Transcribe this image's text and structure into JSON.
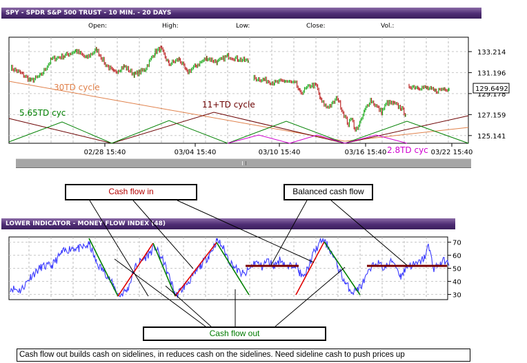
{
  "price_panel": {
    "title": "SPY - SPDR S&P 500 TRUST - 10 MIN. - 20 DAYS",
    "ohlc_labels": [
      "Open:",
      "High:",
      "Low:",
      "Close:",
      "Vol.:"
    ]
  },
  "mfi_panel": {
    "title": "LOWER INDICATOR - MONEY FLOW INDEX (48)"
  },
  "callouts": {
    "cash_flow_in": "Cash flow in",
    "balanced_cash_flow": "Balanced cash flow",
    "cash_flow_out": "Cash flow out"
  },
  "caption": "Cash flow out builds cash on sidelines, in reduces cash on the sidelines.  Need sideline cash to push prices up",
  "colors": {
    "price_bar_up": "#00a000",
    "price_bar_down": "#b00000",
    "mfi_line": "#3a3aff",
    "cycle_30td": "#e0804a",
    "cycle_11td": "#6b0000",
    "cycle_5_65td": "#008000",
    "cycle_2_8td": "#d000d0",
    "cash_in_line": "#e00000",
    "cash_out_line": "#008000",
    "balanced_line": "#7a0000",
    "title_bar": "#4e2d74"
  },
  "chart_data": [
    {
      "type": "line",
      "name": "price",
      "x_tick_labels": [
        "02/28 15:40",
        "03/04 15:40",
        "03/10 15:40",
        "03/16 15:40",
        "03/22 15:40"
      ],
      "y_tick_labels": [
        "133.214",
        "131.196",
        "129.178",
        "127.159",
        "125.141"
      ],
      "ylim": [
        124.4,
        134.6
      ],
      "last_value_label": "129.6492",
      "annotations": [
        {
          "text": "30TD cycle",
          "color": "#e0804a"
        },
        {
          "text": "11+TD cycle",
          "color": "#6b0000"
        },
        {
          "text": "5.65TD cyc",
          "color": "#008000"
        },
        {
          "text": "2.8TD cyc",
          "color": "#d000d0"
        }
      ],
      "anchors": [
        [
          0,
          131.7
        ],
        [
          16,
          131.1
        ],
        [
          30,
          130.4
        ],
        [
          44,
          130.9
        ],
        [
          60,
          132.5
        ],
        [
          78,
          132.8
        ],
        [
          95,
          133.3
        ],
        [
          110,
          132.6
        ],
        [
          125,
          133.4
        ],
        [
          138,
          132.0
        ],
        [
          150,
          131.2
        ],
        [
          165,
          131.8
        ],
        [
          180,
          131.0
        ],
        [
          195,
          131.5
        ],
        [
          210,
          133.2
        ],
        [
          218,
          133.5
        ],
        [
          230,
          132.0
        ],
        [
          245,
          132.5
        ],
        [
          256,
          131.2
        ],
        [
          270,
          131.9
        ],
        [
          285,
          132.6
        ],
        [
          300,
          132.2
        ],
        [
          315,
          132.8
        ],
        [
          330,
          132.5
        ],
        [
          345,
          132.3
        ],
        [
          350,
          130.7
        ],
        [
          368,
          130.5
        ],
        [
          383,
          130.2
        ],
        [
          398,
          130.4
        ],
        [
          414,
          130.1
        ],
        [
          420,
          129.2
        ],
        [
          428,
          129.6
        ],
        [
          436,
          130.0
        ],
        [
          444,
          129.9
        ],
        [
          450,
          128.5
        ],
        [
          458,
          127.9
        ],
        [
          466,
          128.1
        ],
        [
          474,
          128.8
        ],
        [
          482,
          127.4
        ],
        [
          490,
          126.2
        ],
        [
          495,
          126.9
        ],
        [
          500,
          125.6
        ],
        [
          508,
          126.5
        ],
        [
          514,
          127.6
        ],
        [
          522,
          128.6
        ],
        [
          530,
          128.0
        ],
        [
          538,
          127.4
        ],
        [
          546,
          128.3
        ],
        [
          556,
          128.2
        ],
        [
          566,
          127.8
        ],
        [
          573,
          127.2
        ],
        [
          578,
          129.9
        ],
        [
          592,
          129.8
        ],
        [
          604,
          129.7
        ],
        [
          616,
          129.4
        ],
        [
          630,
          129.7
        ],
        [
          636,
          129.6
        ]
      ]
    },
    {
      "type": "line",
      "name": "money-flow-index",
      "y_tick_labels": [
        "70",
        "60",
        "50",
        "40",
        "30"
      ],
      "ylim": [
        26,
        74
      ],
      "anchors": [
        [
          0,
          35
        ],
        [
          15,
          33
        ],
        [
          30,
          44
        ],
        [
          45,
          51
        ],
        [
          60,
          52
        ],
        [
          75,
          62
        ],
        [
          90,
          66
        ],
        [
          100,
          65
        ],
        [
          115,
          68
        ],
        [
          125,
          54
        ],
        [
          140,
          45
        ],
        [
          150,
          36
        ],
        [
          158,
          29
        ],
        [
          170,
          34
        ],
        [
          182,
          52
        ],
        [
          195,
          58
        ],
        [
          210,
          66
        ],
        [
          222,
          55
        ],
        [
          232,
          41
        ],
        [
          240,
          29
        ],
        [
          252,
          36
        ],
        [
          262,
          42
        ],
        [
          276,
          52
        ],
        [
          288,
          60
        ],
        [
          300,
          72
        ],
        [
          308,
          66
        ],
        [
          318,
          55
        ],
        [
          332,
          47
        ],
        [
          340,
          45
        ],
        [
          355,
          55
        ],
        [
          365,
          51
        ],
        [
          372,
          56
        ],
        [
          382,
          52
        ],
        [
          392,
          57
        ],
        [
          402,
          50
        ],
        [
          412,
          54
        ],
        [
          418,
          48
        ],
        [
          425,
          42
        ],
        [
          440,
          62
        ],
        [
          452,
          72
        ],
        [
          462,
          66
        ],
        [
          474,
          52
        ],
        [
          486,
          38
        ],
        [
          496,
          32
        ],
        [
          508,
          36
        ],
        [
          520,
          47
        ],
        [
          530,
          55
        ],
        [
          542,
          50
        ],
        [
          555,
          56
        ],
        [
          566,
          44
        ],
        [
          576,
          52
        ],
        [
          590,
          53
        ],
        [
          600,
          58
        ],
        [
          606,
          67
        ],
        [
          614,
          50
        ],
        [
          624,
          54
        ],
        [
          630,
          56
        ],
        [
          636,
          52
        ]
      ]
    }
  ]
}
